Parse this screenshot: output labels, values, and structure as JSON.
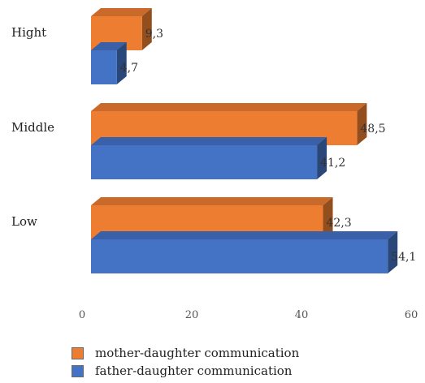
{
  "chart_data": {
    "type": "bar",
    "orientation": "horizontal",
    "three_d": true,
    "categories": [
      "Hight",
      "Middle",
      "Low"
    ],
    "series": [
      {
        "name": "mother-daughter communication",
        "color": "#ED7D31",
        "values": [
          9.3,
          48.5,
          42.3
        ],
        "labels": [
          "9,3",
          "48,5",
          "42,3"
        ]
      },
      {
        "name": "father-daughter communication",
        "color": "#4472C4",
        "values": [
          4.7,
          41.2,
          54.1
        ],
        "labels": [
          "4,7",
          "41,2",
          "54,1"
        ]
      }
    ],
    "xlim": [
      0,
      60
    ],
    "xticks": [
      "0",
      "20",
      "40",
      "60"
    ],
    "grid": false,
    "legend_position": "bottom-left"
  }
}
